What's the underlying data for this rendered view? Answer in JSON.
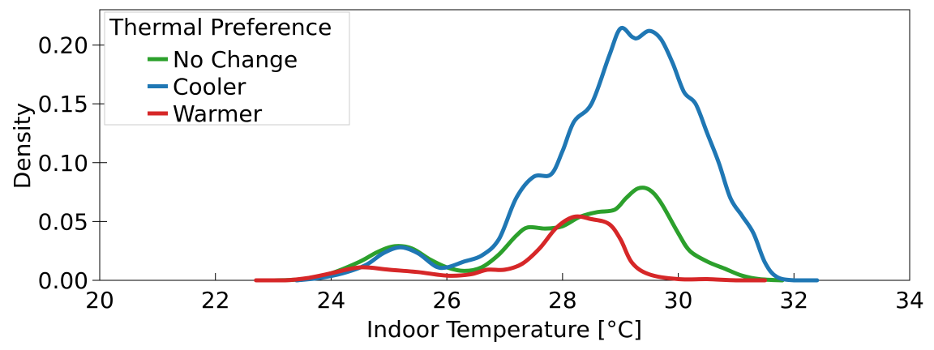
{
  "chart_data": {
    "type": "line",
    "xlabel": "Indoor Temperature [°C]",
    "ylabel": "Density",
    "xlim": [
      20,
      34
    ],
    "ylim": [
      0,
      0.23
    ],
    "x_ticks": [
      "20",
      "22",
      "24",
      "26",
      "28",
      "30",
      "32",
      "34"
    ],
    "y_ticks": [
      "0.00",
      "0.05",
      "0.10",
      "0.15",
      "0.20"
    ],
    "x_tick_values": [
      20,
      22,
      24,
      26,
      28,
      30,
      32,
      34
    ],
    "y_tick_values": [
      0,
      0.05,
      0.1,
      0.15,
      0.2
    ],
    "grid": false,
    "legend": {
      "title": "Thermal Preference",
      "placement": "top-left"
    },
    "series": [
      {
        "name": "No Change",
        "color": "#2ca02c",
        "points": [
          [
            23.0,
            0.0
          ],
          [
            23.5,
            0.001
          ],
          [
            24.0,
            0.006
          ],
          [
            24.5,
            0.016
          ],
          [
            24.8,
            0.024
          ],
          [
            25.1,
            0.029
          ],
          [
            25.4,
            0.027
          ],
          [
            25.7,
            0.018
          ],
          [
            26.0,
            0.011
          ],
          [
            26.3,
            0.008
          ],
          [
            26.6,
            0.011
          ],
          [
            26.9,
            0.022
          ],
          [
            27.2,
            0.038
          ],
          [
            27.4,
            0.045
          ],
          [
            27.7,
            0.044
          ],
          [
            28.0,
            0.046
          ],
          [
            28.3,
            0.054
          ],
          [
            28.6,
            0.058
          ],
          [
            28.9,
            0.06
          ],
          [
            29.1,
            0.07
          ],
          [
            29.3,
            0.078
          ],
          [
            29.5,
            0.077
          ],
          [
            29.7,
            0.066
          ],
          [
            30.0,
            0.04
          ],
          [
            30.2,
            0.025
          ],
          [
            30.5,
            0.016
          ],
          [
            30.8,
            0.01
          ],
          [
            31.1,
            0.004
          ],
          [
            31.4,
            0.001
          ],
          [
            31.8,
            0.0
          ]
        ]
      },
      {
        "name": "Cooler",
        "color": "#1f77b4",
        "points": [
          [
            23.4,
            0.0
          ],
          [
            23.8,
            0.002
          ],
          [
            24.2,
            0.006
          ],
          [
            24.6,
            0.013
          ],
          [
            24.9,
            0.023
          ],
          [
            25.2,
            0.028
          ],
          [
            25.5,
            0.023
          ],
          [
            25.8,
            0.012
          ],
          [
            26.0,
            0.011
          ],
          [
            26.3,
            0.016
          ],
          [
            26.6,
            0.021
          ],
          [
            26.9,
            0.035
          ],
          [
            27.2,
            0.07
          ],
          [
            27.5,
            0.088
          ],
          [
            27.8,
            0.09
          ],
          [
            28.0,
            0.11
          ],
          [
            28.2,
            0.135
          ],
          [
            28.5,
            0.15
          ],
          [
            28.8,
            0.19
          ],
          [
            29.0,
            0.214
          ],
          [
            29.2,
            0.207
          ],
          [
            29.3,
            0.206
          ],
          [
            29.5,
            0.212
          ],
          [
            29.7,
            0.205
          ],
          [
            29.9,
            0.185
          ],
          [
            30.1,
            0.16
          ],
          [
            30.3,
            0.15
          ],
          [
            30.5,
            0.125
          ],
          [
            30.7,
            0.1
          ],
          [
            30.9,
            0.07
          ],
          [
            31.1,
            0.055
          ],
          [
            31.3,
            0.04
          ],
          [
            31.5,
            0.015
          ],
          [
            31.7,
            0.003
          ],
          [
            32.0,
            0.0
          ],
          [
            32.4,
            0.0
          ]
        ]
      },
      {
        "name": "Warmer",
        "color": "#d62728",
        "points": [
          [
            22.7,
            0.0
          ],
          [
            23.2,
            0.0
          ],
          [
            23.6,
            0.002
          ],
          [
            24.0,
            0.006
          ],
          [
            24.5,
            0.011
          ],
          [
            25.0,
            0.009
          ],
          [
            25.5,
            0.007
          ],
          [
            26.0,
            0.004
          ],
          [
            26.4,
            0.005
          ],
          [
            26.7,
            0.009
          ],
          [
            27.0,
            0.009
          ],
          [
            27.3,
            0.014
          ],
          [
            27.6,
            0.027
          ],
          [
            27.9,
            0.045
          ],
          [
            28.2,
            0.054
          ],
          [
            28.5,
            0.052
          ],
          [
            28.8,
            0.048
          ],
          [
            29.0,
            0.035
          ],
          [
            29.2,
            0.015
          ],
          [
            29.5,
            0.005
          ],
          [
            30.0,
            0.001
          ],
          [
            30.5,
            0.001
          ],
          [
            31.0,
            0.0
          ],
          [
            31.5,
            0.0
          ]
        ]
      }
    ]
  }
}
